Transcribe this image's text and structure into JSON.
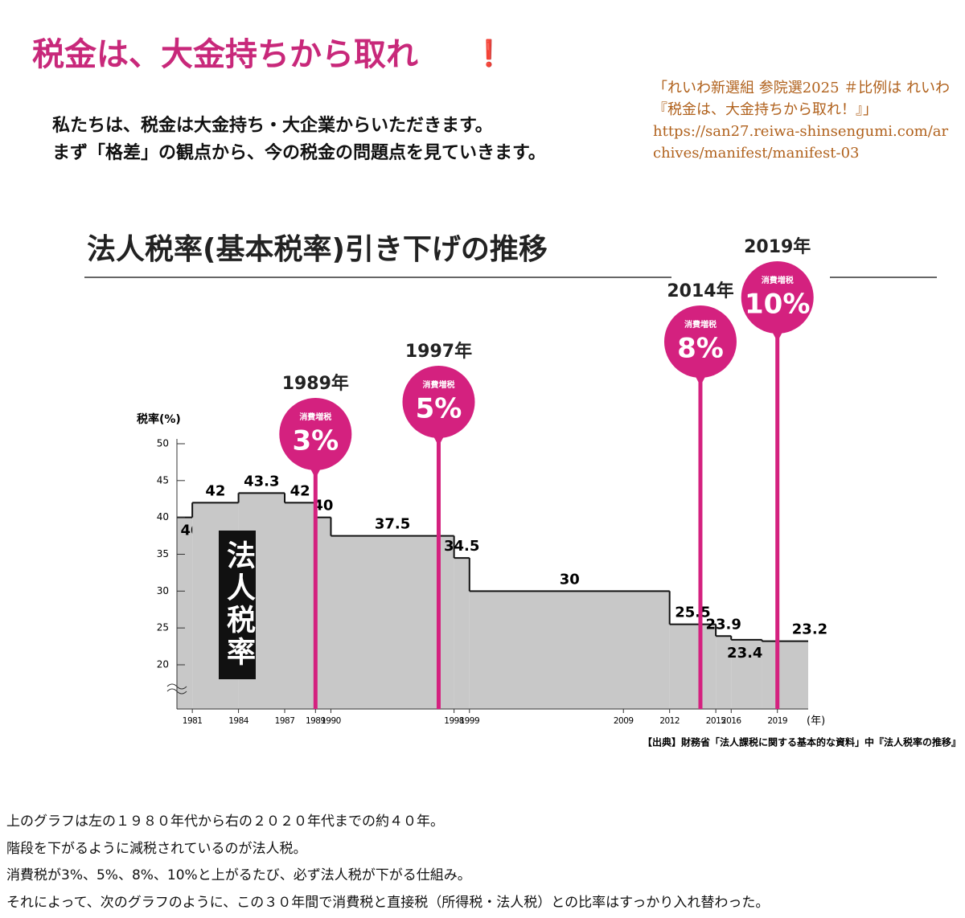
{
  "header": {
    "title": "税金は、大金持ちから取れ",
    "exclamation": "❗",
    "intro": [
      "私たちは、税金は大金持ち・大企業からいただきます。",
      "まず「格差」の観点から、今の税金の問題点を見ていきます。"
    ],
    "citation": "「れいわ新選組 参院選2025 ＃比例は れいわ『税金は、大金持ちから取れ！』」",
    "url": "https://san27.reiwa-shinsengumi.com/archives/manifest/manifest-03"
  },
  "chart_data": {
    "type": "step",
    "title": "法人税率(基本税率)引き下げの推移",
    "y_label": "税率(%)",
    "x_unit": "(年)",
    "area_label": "法人税率",
    "source": "【出典】財務省「法人課税に関する基本的な資料」中『法人税率の推移』",
    "x": [
      1980,
      1981,
      1984,
      1987,
      1989,
      1990,
      1998,
      1999,
      2012,
      2015,
      2016,
      2018
    ],
    "series": [
      {
        "name": "法人税率",
        "color": "#c8c8c8",
        "values": [
          40,
          42,
          43.3,
          42,
          40,
          37.5,
          34.5,
          30,
          25.5,
          23.9,
          23.4,
          23.2
        ]
      }
    ],
    "xlim": [
      1980,
      2021
    ],
    "ylim": [
      14,
      50
    ],
    "xticks": [
      1981,
      1984,
      1987,
      1989,
      1990,
      1998,
      1999,
      2009,
      2012,
      2015,
      2016,
      2019
    ],
    "yticks": [
      20,
      25,
      30,
      35,
      40,
      45,
      50
    ],
    "events": [
      {
        "year": 1989,
        "label": "1989年",
        "tag": "消費増税",
        "rate": 3,
        "rate_label": "3%"
      },
      {
        "year": 1997,
        "label": "1997年",
        "tag": "消費増税",
        "rate": 5,
        "rate_label": "5%"
      },
      {
        "year": 2014,
        "label": "2014年",
        "tag": "消費増税",
        "rate": 8,
        "rate_label": "8%"
      },
      {
        "year": 2019,
        "label": "2019年",
        "tag": "消費増税",
        "rate": 10,
        "rate_label": "10%"
      }
    ],
    "event_color": "#d4217f"
  },
  "footer": [
    "上のグラフは左の１９８０年代から右の２０２０年代までの約４０年。",
    "階段を下がるように減税されているのが法人税。",
    "消費税が3%、5%、8%、10%と上がるたび、必ず法人税が下がる仕組み。",
    "それによって、次のグラフのように、この３０年間で消費税と直接税（所得税・法人税）との比率はすっかり入れ替わった。"
  ]
}
